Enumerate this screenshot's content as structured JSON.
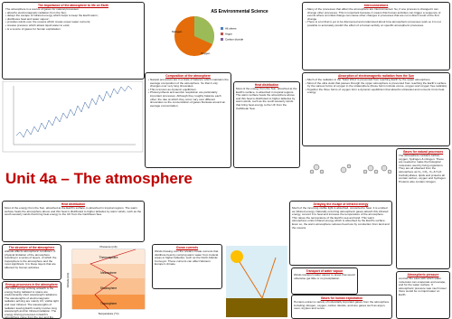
{
  "header": {
    "title": "Unit 4a – The atmosphere"
  },
  "sections": [
    {
      "title": "The importance of the atmosphere to life on Earth",
      "body": [
        "The atmosphere is a source of gases for natural processes:",
        "• absorbs electromagnetic radiation from the Sun;",
        "• delays the escape of infrared energy which helps to keep the Earth warm;",
        "• distributes heat and water vapour;",
        "• provides winds over the oceans which create ocean water currents;",
        "• creates pressure which allows liquid water to exist;",
        "• is a source of gases for human exploitation."
      ]
    },
    {
      "title": "Interconnections",
      "body": [
        "• Many of the processes that affect the atmosphere are interconnected. So, if one process is changed it can change other processes. This is important because it means that human activities can trigger a sequence of events where an initial change can cause other changes in processes that are not a direct result of the first change.",
        "• There is a lot that is yet to be discovered and understood about how atmospheric processes work so it is not possible to accurately predict the effect of a human activity on specific atmospheric processes."
      ]
    },
    {
      "title": "Composition of the atmosphere",
      "body": [
        "• Natural processes are in a state of balance which maintains the average composition of the atmosphere. So that it only changes over very long timescales.",
        "• This is known as dynamic equilibrium.",
        "• Photosynthesis and aerobic respiration are particularly important processes. Although they roughly balance each other, the rate at which they occur vary over different timescales so the concentration of gases fluctuate around an average concentration."
      ]
    },
    {
      "title": "Absorption of electromagnetic radiation from the Sun",
      "body": [
        "• Much of the radiation in the 'Solar Wind' is prevented from reaching Earth by the upper atmosphere.",
        "• Most of the ultra violet that passes through the upper atmosphere is prevented from reaching the Earth's surface by the various forms of oxygen in the stratosphere (these forms include ozone, oxygen and oxygen free radicals).",
        "• Together the three forms of oxygen form a dynamic equilibrium that absorbs ultraviolet and converts it into heat energy."
      ]
    },
    {
      "title": "Heat distribution",
      "body": [
        "Most of the energy from the Sun, absorbed at the Earth's surface, is absorbed in tropical regions. The warm surface heats the atmosphere above and this heat is distributed to higher latitudes by warm winds, such as the south westerly winds that bring heat energy to the UK from the Caribbean Sea."
      ]
    },
    {
      "title": "Heat distribution",
      "body": [
        "Most of the energy from the Sun, absorbed at the Earth's surface, is absorbed in tropical regions. The warm surface heats the atmosphere above and this heat is distributed to higher latitudes by warm winds, such as the south westerly winds that bring heat energy to the UK from the Caribbean Sea."
      ]
    },
    {
      "title": "Gases for natural processes",
      "body": [
        "The atmosphere contains carbon, oxygen, hydrogen & nitrogen. These are needed to make the biological molecules used by living organisms. They are all obtained from the atmosphere as N₂, CO₂, O₂ & H₂O. Carbohydrates, lipids and proteins all contain carbon, oxygen and hydrogen. Proteins also contain nitrogen."
      ]
    },
    {
      "title": "Delaying the escape of infrared energy",
      "body": [
        "Much of the incoming visible light is absorbed, converted to heat. It is emitted as infrared energy. Naturally occurring atmospheric gases absorb this infrared energy, convert it to heat and increase the temperature of the atmosphere. This raises the temperature of the Earth's sea and land. This warm atmosphere emits infrared energy which is absorbed by the Earth's surface. Even so, the warm atmosphere reduces heat loss by conduction from land and the oceans."
      ]
    },
    {
      "title": "The structure of the atmosphere",
      "body": [
        "Altitude affects atmospheric conditions. A physical limitation of the atmosphere resulting in a series of layers, of which the troposphere is the atmosphere and the most significant. It is these layers that are affected by human activities."
      ]
    },
    {
      "title": "Energy processes in the atmosphere",
      "body": [
        "The solar energy arriving at Earth is the energy being radiated to space are predominantly short wavelength radiations. The wavelengths of electromagnetic radiation arriving are mainly UV, visible light and near infrared. The wavelengths of radiation leaving Earth mainly involve long wavelength and far infrared radiation. The energy driving processes in Earth's atmosphere come from the sun and the movement of energy could affect any of these factors and thus the survival of living organisms."
      ]
    },
    {
      "title": "Ocean currents",
      "body": [
        "Winds blowing over the oceans create currents that distribute heat by carrying warm water from tropical areas to higher latitudes, such as the North Atlantic Conveyor. These currents can affect Western Europe's climate."
      ]
    },
    {
      "title": "Transport of water vapour",
      "body": [
        "Winds transport water vapour to areas that would otherwise get little or no precipitation."
      ]
    },
    {
      "title": "Gases for human exploitation",
      "body": [
        "Humans extract a variety of industrially important gases from the atmosphere including nitrogen, oxygen, carbon dioxide, and rare gases such as argon, neon, krypton and xenon."
      ]
    },
    {
      "title": "Atmospheric pressure",
      "body": [
        "controls the ease with which water molecules can evaporate and escape, and for the water surface. If atmospheric pressure was much lower there would be no liquid water on Earth."
      ]
    }
  ],
  "centre": {
    "title": "AS Environmental Science",
    "pie_labels": [
      "Nitrogen",
      "Oxygen"
    ],
    "legend": [
      "All others",
      "Argon",
      "Carbon dioxide"
    ]
  },
  "atmosphere_diagram": {
    "top_label": "Pressure (mb)",
    "left_label": "Altitude (km)",
    "bottom_label": "Temperature (°C)",
    "layers": [
      "Thermosphere",
      "Mesosphere",
      "Stratosphere",
      "Troposphere"
    ]
  }
}
